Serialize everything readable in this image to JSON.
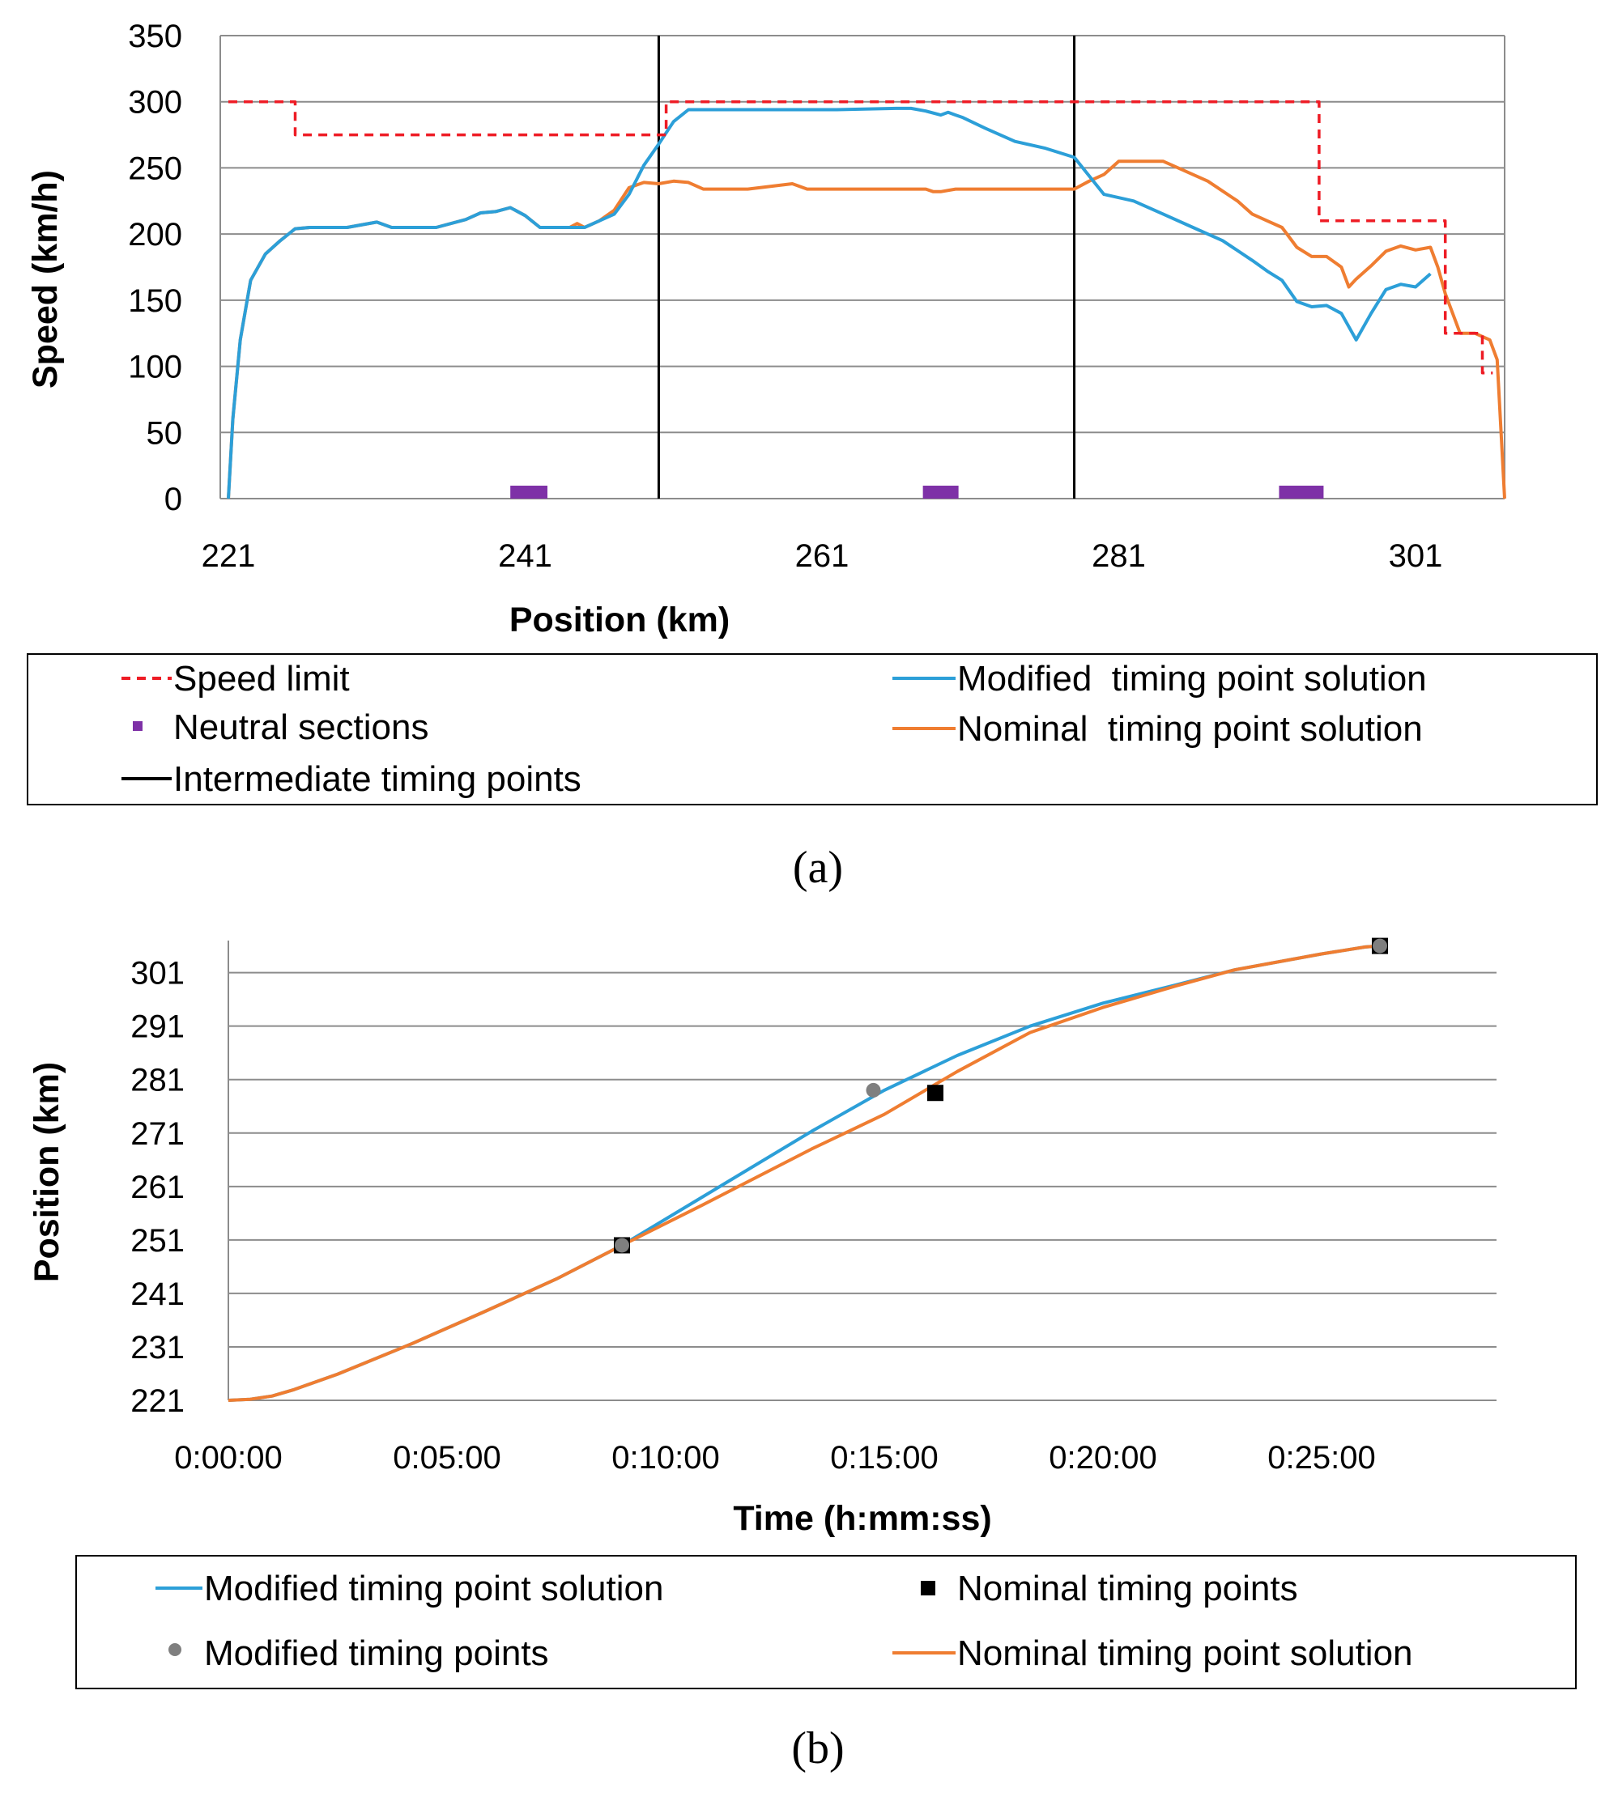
{
  "colors": {
    "speed_limit": "#ee1c25",
    "modified": "#2c9fd8",
    "nominal": "#ef7d31",
    "neutral": "#7e31a7",
    "timing": "#000000",
    "grid": "#8c8c8c",
    "modified_point": "#7f7f7f",
    "nominal_point": "#000000"
  },
  "chart_data": [
    {
      "panel": "(a)",
      "type": "line",
      "xlabel": "Position (km)",
      "ylabel": "Speed (km/h)",
      "xlim": [
        221,
        307
      ],
      "ylim": [
        0,
        350
      ],
      "x_ticks": [
        "221",
        "241",
        "261",
        "281",
        "301"
      ],
      "y_ticks": [
        "0",
        "50",
        "100",
        "150",
        "200",
        "250",
        "300",
        "350"
      ],
      "gridlines": "horizontal",
      "legend": {
        "placement": "bottom",
        "entries": [
          "Speed limit",
          "Neutral sections",
          "Intermediate timing points",
          "Modified  timing point solution",
          "Nominal  timing point solution"
        ]
      },
      "intermediate_timing_points_km": [
        250,
        278
      ],
      "neutral_sections_km": [
        [
          240,
          242.5
        ],
        [
          267.8,
          270.2
        ],
        [
          291.8,
          294.8
        ]
      ],
      "series": [
        {
          "name": "Speed limit",
          "style": "dashed-step",
          "x": [
            221,
            225.5,
            225.5,
            250.5,
            250.5,
            294.5,
            294.5,
            303,
            303,
            305.5,
            305.5,
            306.2
          ],
          "y": [
            300,
            300,
            275,
            275,
            300,
            300,
            210,
            210,
            125,
            125,
            95,
            95
          ]
        },
        {
          "name": "Modified  timing point solution",
          "x": [
            221,
            221.3,
            221.8,
            222.5,
            223.5,
            224.5,
            225.5,
            226.5,
            229,
            231,
            232,
            235,
            237,
            238,
            239,
            240,
            241,
            242,
            243,
            244,
            245,
            246,
            247,
            248,
            249,
            250,
            251,
            252,
            254,
            258,
            262,
            266,
            267,
            268,
            269,
            269.5,
            270,
            270.5,
            272,
            274,
            276,
            278,
            280,
            282,
            284,
            286,
            288,
            290,
            291,
            292,
            293,
            294,
            295,
            296,
            297,
            298,
            299,
            300,
            301,
            302
          ],
          "y": [
            0,
            60,
            120,
            165,
            185,
            195,
            204,
            205,
            205,
            209,
            205,
            205,
            211,
            216,
            217,
            220,
            214,
            205,
            205,
            205,
            205,
            210,
            215,
            230,
            252,
            268,
            285,
            294,
            294,
            294,
            294,
            295,
            295,
            293,
            290,
            292,
            290,
            288,
            280,
            270,
            265,
            258,
            230,
            225,
            215,
            205,
            195,
            180,
            172,
            165,
            149,
            145,
            146,
            140,
            120,
            140,
            158,
            162,
            160,
            170
          ]
        },
        {
          "name": "Nominal  timing point solution",
          "x": [
            221,
            221.3,
            221.8,
            222.5,
            223.5,
            224.5,
            225.5,
            226.5,
            229,
            231,
            232,
            235,
            237,
            238,
            239,
            240,
            241,
            242,
            243,
            244,
            244.5,
            245,
            246,
            247,
            248,
            249,
            250,
            251,
            252,
            253,
            256,
            259,
            260,
            262,
            266,
            268,
            268.5,
            269,
            270,
            272,
            276,
            278,
            279,
            280,
            281,
            282,
            284,
            285,
            287,
            289,
            290,
            291,
            292,
            293,
            294,
            295,
            296,
            296.5,
            297,
            298,
            299,
            300,
            301,
            302,
            302.5,
            303,
            304,
            305,
            306,
            306.5,
            307
          ],
          "y": [
            0,
            60,
            120,
            165,
            185,
            195,
            204,
            205,
            205,
            209,
            205,
            205,
            211,
            216,
            217,
            220,
            214,
            205,
            205,
            205,
            208,
            205,
            210,
            218,
            235,
            239,
            238,
            240,
            239,
            234,
            234,
            238,
            234,
            234,
            234,
            234,
            232,
            232,
            234,
            234,
            234,
            234,
            240,
            245,
            255,
            255,
            255,
            250,
            240,
            225,
            215,
            210,
            205,
            190,
            183,
            183,
            175,
            160,
            166,
            176,
            187,
            191,
            188,
            190,
            175,
            155,
            125,
            125,
            120,
            105,
            0
          ]
        }
      ]
    },
    {
      "panel": "(b)",
      "type": "line",
      "xlabel": "Time (h:mm:ss)",
      "ylabel": "Position (km)",
      "xlim": [
        0,
        1740
      ],
      "ylim": [
        221,
        307
      ],
      "x_ticks": [
        "0:00:00",
        "0:05:00",
        "0:10:00",
        "0:15:00",
        "0:20:00",
        "0:25:00"
      ],
      "y_ticks": [
        "221",
        "231",
        "241",
        "251",
        "261",
        "271",
        "281",
        "291",
        "301"
      ],
      "gridlines": "horizontal",
      "legend": {
        "placement": "bottom",
        "entries": [
          "Modified timing point solution",
          "Modified timing points",
          "Nominal timing points",
          "Nominal timing point solution"
        ]
      },
      "series": [
        {
          "name": "Modified timing point solution",
          "x": [
            0,
            30,
            60,
            90,
            150,
            250,
            350,
            450,
            540,
            650,
            800,
            900,
            1000,
            1100,
            1200,
            1300,
            1380,
            1500,
            1560,
            1580
          ],
          "y": [
            221,
            221.2,
            221.8,
            223,
            225.9,
            231.5,
            237.5,
            243.7,
            250,
            259,
            271.3,
            279,
            285.5,
            291,
            295.3,
            298.7,
            301.5,
            304.5,
            305.8,
            306
          ]
        },
        {
          "name": "Nominal timing point solution",
          "x": [
            0,
            30,
            60,
            90,
            150,
            250,
            350,
            450,
            540,
            650,
            800,
            900,
            1000,
            1100,
            1200,
            1300,
            1380,
            1500,
            1560,
            1580
          ],
          "y": [
            221,
            221.2,
            221.8,
            223,
            225.9,
            231.5,
            237.5,
            243.7,
            250,
            257.5,
            268,
            274.5,
            282.5,
            289.8,
            294.5,
            298.5,
            301.5,
            304.5,
            305.8,
            306
          ]
        },
        {
          "name": "Modified timing points",
          "style": "markers-circle",
          "x": [
            540,
            885,
            1580
          ],
          "y": [
            250,
            279,
            306
          ]
        },
        {
          "name": "Nominal timing points",
          "style": "markers-square",
          "x": [
            540,
            970,
            1580
          ],
          "y": [
            250,
            278.5,
            306
          ]
        }
      ]
    }
  ]
}
